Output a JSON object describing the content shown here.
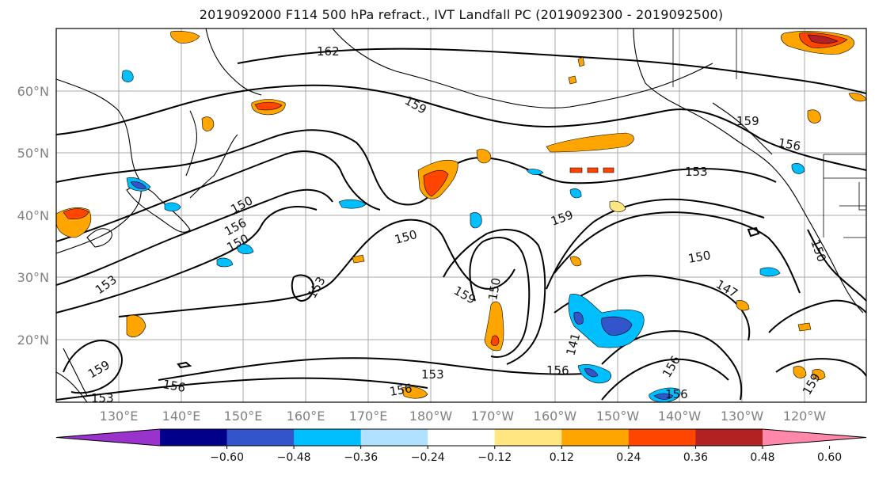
{
  "title": "2019092000 F114 500 hPa refract., IVT Landfall PC (2019092300 - 2019092500)",
  "lat_labels": [
    "60°N",
    "50°N",
    "40°N",
    "30°N",
    "20°N"
  ],
  "lon_labels": [
    "130°E",
    "140°E",
    "150°E",
    "160°E",
    "170°E",
    "180°W",
    "170°W",
    "160°W",
    "150°W",
    "140°W",
    "130°W",
    "120°W"
  ],
  "contour_labels": [
    "162",
    "159",
    "159",
    "156",
    "153",
    "150",
    "156",
    "150",
    "153",
    "153",
    "150",
    "159",
    "150",
    "159",
    "150",
    "147",
    "150",
    "159",
    "156",
    "153",
    "156",
    "156",
    "156",
    "159",
    "141",
    "153"
  ],
  "colorbar": {
    "ticks": [
      "−0.60",
      "−0.48",
      "−0.36",
      "−0.24",
      "−0.12",
      "0.12",
      "0.24",
      "0.36",
      "0.48",
      "0.60"
    ],
    "colors": [
      "#9933cc",
      "#00008b",
      "#3355cc",
      "#00bfff",
      "#b0e2ff",
      "#ffffff",
      "#ffe680",
      "#ffa500",
      "#ff4500",
      "#b22222",
      "#ff88aa"
    ]
  }
}
